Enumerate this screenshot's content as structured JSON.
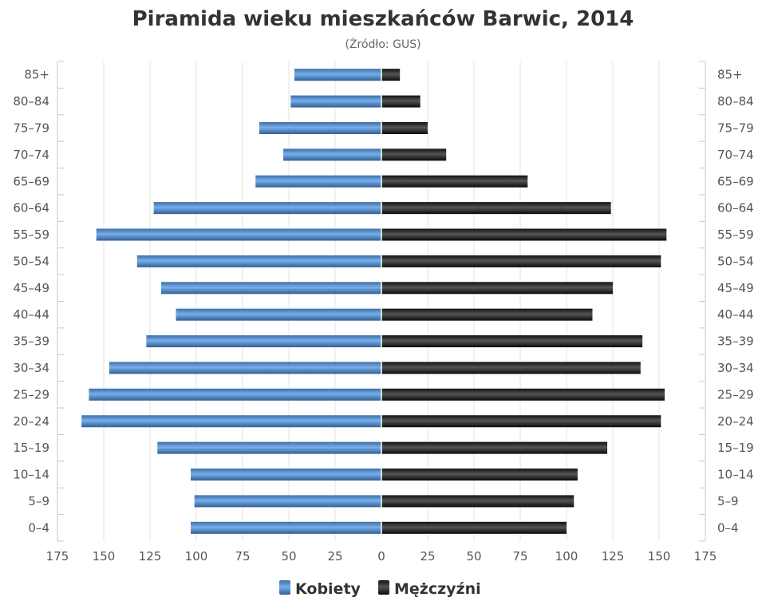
{
  "chart_data": {
    "type": "bar",
    "orientation": "horizontal-population-pyramid",
    "title": "Piramida wieku mieszkańców Barwic, 2014",
    "subtitle": "(Źródło: GUS)",
    "categories": [
      "0–4",
      "5–9",
      "10–14",
      "15–19",
      "20–24",
      "25–29",
      "30–34",
      "35–39",
      "40–44",
      "45–49",
      "50–54",
      "55–59",
      "60–64",
      "65–69",
      "70–74",
      "75–79",
      "80–84",
      "85+"
    ],
    "series": [
      {
        "name": "Kobiety",
        "color": "#4a86c5",
        "side": "left",
        "values": [
          103,
          101,
          103,
          121,
          162,
          158,
          147,
          127,
          111,
          119,
          132,
          154,
          123,
          68,
          53,
          66,
          49,
          47
        ]
      },
      {
        "name": "Mężczyźni",
        "color": "#222222",
        "side": "right",
        "values": [
          100,
          104,
          106,
          122,
          151,
          153,
          140,
          141,
          114,
          125,
          151,
          154,
          124,
          79,
          35,
          25,
          21,
          10
        ]
      }
    ],
    "x_ticks": [
      "175",
      "150",
      "125",
      "100",
      "75",
      "50",
      "25",
      "0",
      "25",
      "50",
      "75",
      "100",
      "125",
      "150",
      "175"
    ],
    "xlim": [
      -175,
      175
    ],
    "grid": true,
    "legend_position": "bottom"
  }
}
